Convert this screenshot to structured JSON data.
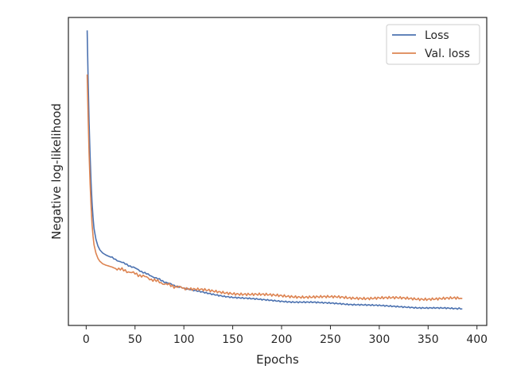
{
  "chart_data": {
    "type": "line",
    "title": "",
    "xlabel": "Epochs",
    "ylabel": "Negative log-likelihood",
    "xlim": [
      -18.2,
      410
    ],
    "ylim": [
      0,
      1
    ],
    "xticks": [
      0,
      50,
      100,
      150,
      200,
      250,
      300,
      350,
      400
    ],
    "y_tick_labels_shown": false,
    "grid": false,
    "legend": "top-right",
    "series": [
      {
        "name": "Loss",
        "color": "#4c72b0",
        "x": [
          1,
          2,
          3,
          4,
          5,
          6,
          7,
          8,
          10,
          12,
          14,
          17,
          20,
          25,
          30,
          35,
          40,
          45,
          50,
          55,
          60,
          65,
          70,
          75,
          80,
          85,
          90,
          95,
          100,
          110,
          120,
          130,
          140,
          150,
          160,
          170,
          180,
          190,
          200,
          210,
          220,
          230,
          240,
          250,
          260,
          270,
          280,
          290,
          300,
          310,
          320,
          330,
          340,
          350,
          360,
          370,
          380,
          385
        ],
        "y": [
          0.958,
          0.8,
          0.66,
          0.55,
          0.465,
          0.4,
          0.35,
          0.315,
          0.28,
          0.258,
          0.245,
          0.235,
          0.229,
          0.222,
          0.214,
          0.207,
          0.2,
          0.193,
          0.186,
          0.178,
          0.17,
          0.163,
          0.156,
          0.149,
          0.142,
          0.136,
          0.13,
          0.125,
          0.12,
          0.113,
          0.107,
          0.101,
          0.096,
          0.092,
          0.089,
          0.086,
          0.083,
          0.081,
          0.079,
          0.077,
          0.076,
          0.075,
          0.073,
          0.072,
          0.071,
          0.069,
          0.068,
          0.066,
          0.064,
          0.062,
          0.061,
          0.06,
          0.058,
          0.057,
          0.056,
          0.055,
          0.054,
          0.054
        ]
      },
      {
        "name": "Val. loss",
        "color": "#dd8452",
        "x": [
          1,
          2,
          3,
          4,
          5,
          6,
          7,
          8,
          10,
          12,
          14,
          17,
          20,
          25,
          30,
          35,
          40,
          45,
          50,
          55,
          60,
          65,
          70,
          75,
          80,
          85,
          90,
          95,
          100,
          110,
          120,
          130,
          140,
          150,
          160,
          170,
          180,
          190,
          200,
          210,
          220,
          230,
          240,
          250,
          260,
          270,
          280,
          290,
          300,
          310,
          320,
          330,
          340,
          350,
          360,
          370,
          380,
          385
        ],
        "y": [
          0.815,
          0.68,
          0.56,
          0.46,
          0.39,
          0.33,
          0.29,
          0.262,
          0.235,
          0.218,
          0.208,
          0.2,
          0.196,
          0.191,
          0.186,
          0.182,
          0.178,
          0.173,
          0.168,
          0.163,
          0.158,
          0.152,
          0.146,
          0.141,
          0.135,
          0.131,
          0.127,
          0.124,
          0.121,
          0.117,
          0.114,
          0.11,
          0.107,
          0.105,
          0.103,
          0.101,
          0.099,
          0.097,
          0.096,
          0.095,
          0.094,
          0.093,
          0.092,
          0.091,
          0.091,
          0.09,
          0.09,
          0.089,
          0.089,
          0.088,
          0.088,
          0.088,
          0.087,
          0.087,
          0.087,
          0.087,
          0.087,
          0.087
        ]
      }
    ]
  }
}
